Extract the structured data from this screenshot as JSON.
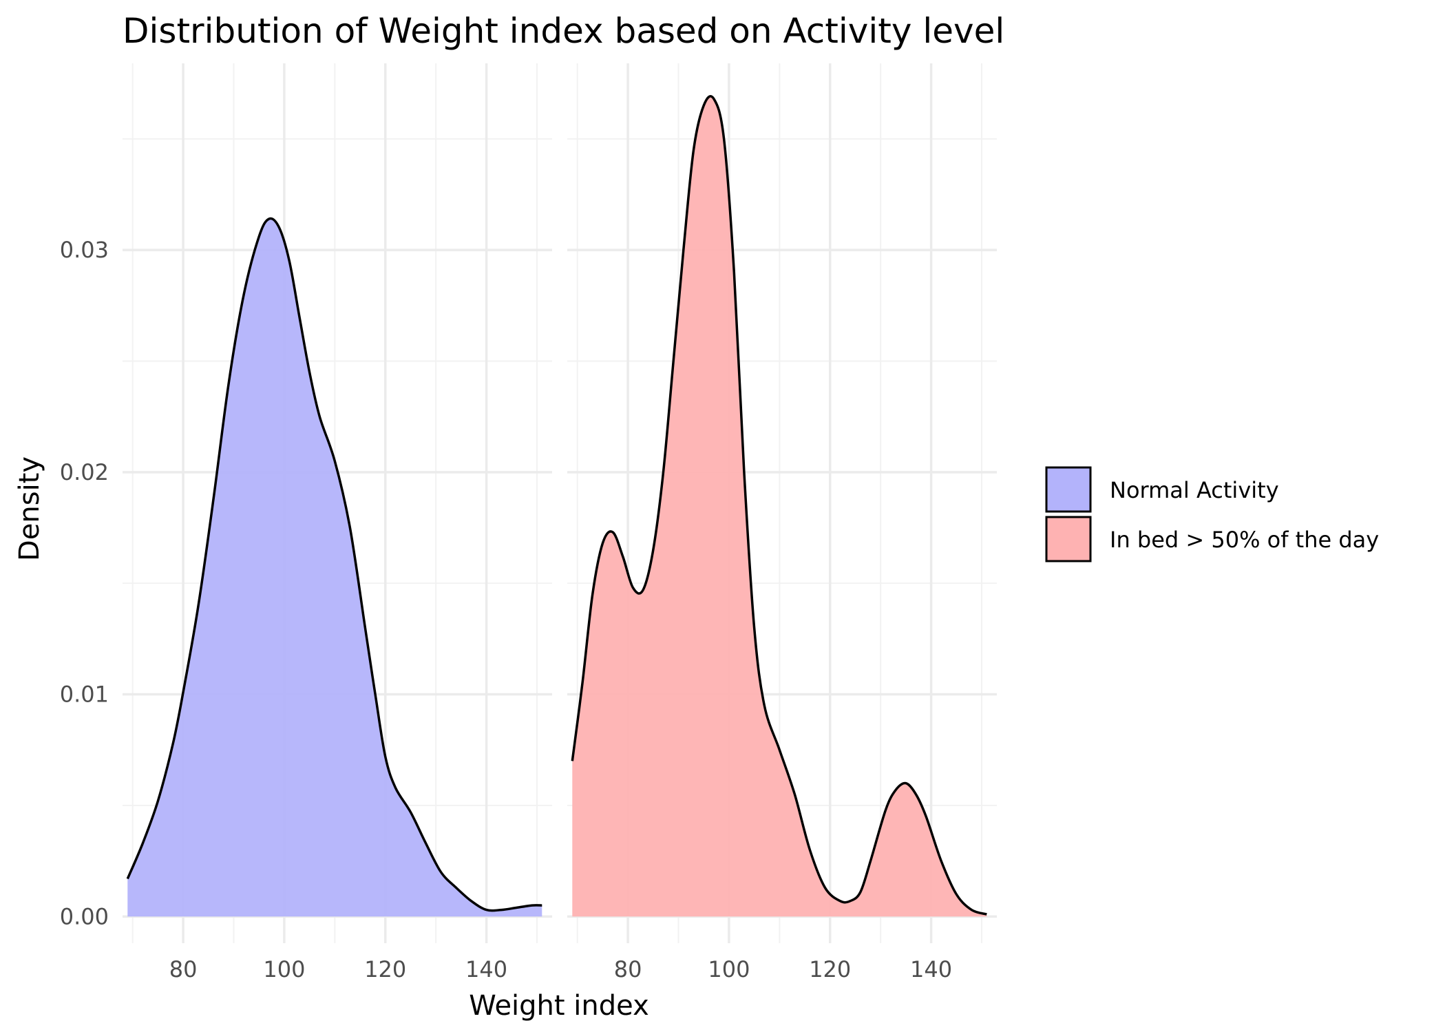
{
  "chart_data": {
    "type": "area",
    "title": "Distribution of Weight index based on Activity level",
    "xlabel": "Weight index",
    "ylabel": "Density",
    "xlim": [
      68,
      153
    ],
    "ylim": [
      -0.0012,
      0.0384
    ],
    "x_ticks": [
      80,
      100,
      120,
      140
    ],
    "y_ticks": [
      0.0,
      0.01,
      0.02,
      0.03
    ],
    "y_tick_labels": [
      "0.00",
      "0.01",
      "0.02",
      "0.03"
    ],
    "grid": true,
    "legend_position": "right",
    "panels": [
      {
        "series": "Normal Activity",
        "color": "#b3b3fb",
        "points": [
          [
            69,
            0.0017
          ],
          [
            72,
            0.0033
          ],
          [
            75,
            0.0052
          ],
          [
            78,
            0.0078
          ],
          [
            80,
            0.0101
          ],
          [
            83,
            0.014
          ],
          [
            86,
            0.0188
          ],
          [
            89,
            0.024
          ],
          [
            92,
            0.028
          ],
          [
            95,
            0.0306
          ],
          [
            97,
            0.0314
          ],
          [
            99,
            0.031
          ],
          [
            101,
            0.0295
          ],
          [
            103,
            0.027
          ],
          [
            105,
            0.0245
          ],
          [
            107,
            0.0225
          ],
          [
            110,
            0.0205
          ],
          [
            113,
            0.0175
          ],
          [
            116,
            0.013
          ],
          [
            118,
            0.01
          ],
          [
            120,
            0.0072
          ],
          [
            122,
            0.0058
          ],
          [
            125,
            0.0047
          ],
          [
            128,
            0.0033
          ],
          [
            131,
            0.002
          ],
          [
            134,
            0.0013
          ],
          [
            137,
            0.0007
          ],
          [
            140,
            0.0003
          ],
          [
            143,
            0.0003
          ],
          [
            146,
            0.0004
          ],
          [
            149,
            0.0005
          ],
          [
            151,
            0.0005
          ]
        ]
      },
      {
        "series": "In bed > 50% of the day",
        "color": "#feb2b2",
        "points": [
          [
            69,
            0.007
          ],
          [
            71,
            0.0105
          ],
          [
            73,
            0.0145
          ],
          [
            75,
            0.0168
          ],
          [
            77,
            0.0173
          ],
          [
            79,
            0.0162
          ],
          [
            81,
            0.0148
          ],
          [
            83,
            0.0147
          ],
          [
            85,
            0.0165
          ],
          [
            87,
            0.02
          ],
          [
            89,
            0.025
          ],
          [
            91,
            0.03
          ],
          [
            93,
            0.0345
          ],
          [
            95,
            0.0365
          ],
          [
            97,
            0.0368
          ],
          [
            99,
            0.035
          ],
          [
            101,
            0.029
          ],
          [
            103,
            0.02
          ],
          [
            105,
            0.013
          ],
          [
            107,
            0.0095
          ],
          [
            110,
            0.0075
          ],
          [
            113,
            0.0055
          ],
          [
            116,
            0.003
          ],
          [
            119,
            0.0013
          ],
          [
            122,
            0.0007
          ],
          [
            124,
            0.0007
          ],
          [
            126,
            0.0011
          ],
          [
            128,
            0.0025
          ],
          [
            131,
            0.0048
          ],
          [
            133,
            0.0057
          ],
          [
            135,
            0.006
          ],
          [
            137,
            0.0055
          ],
          [
            139,
            0.0045
          ],
          [
            142,
            0.0025
          ],
          [
            145,
            0.001
          ],
          [
            148,
            0.0003
          ],
          [
            151,
            0.0001
          ]
        ]
      }
    ]
  },
  "legend": {
    "items": [
      {
        "label": "Normal Activity",
        "color": "#b3b3fb"
      },
      {
        "label": "In bed > 50% of the day",
        "color": "#feb2b2"
      }
    ]
  }
}
